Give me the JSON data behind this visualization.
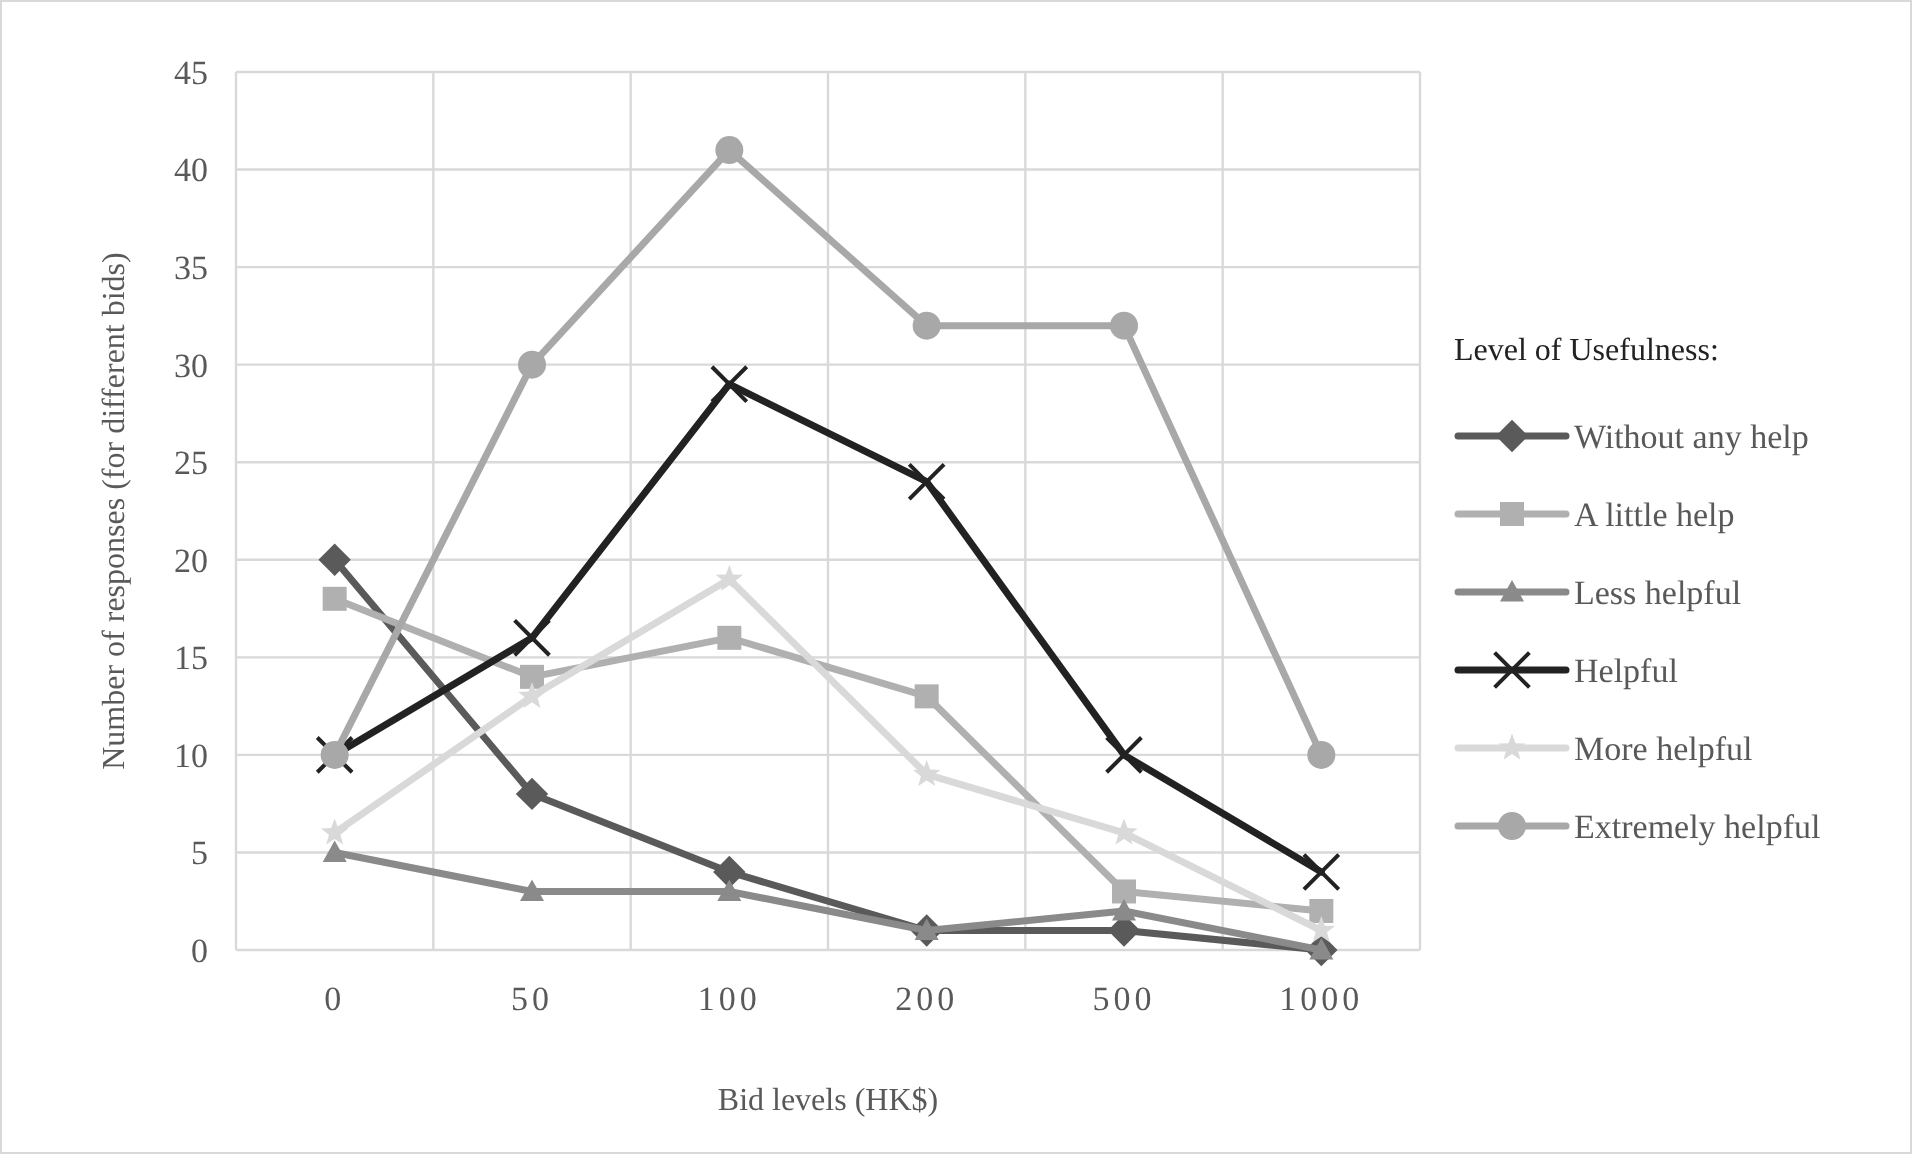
{
  "chart_data": {
    "type": "line",
    "xlabel": "Bid levels (HK$)",
    "ylabel": "Number of responses (for different bids)",
    "legend_title": "Level of Usefulness:",
    "categories": [
      "0",
      "50",
      "100",
      "200",
      "500",
      "1000"
    ],
    "ylim": [
      0,
      45
    ],
    "yticks": [
      0,
      5,
      10,
      15,
      20,
      25,
      30,
      35,
      40,
      45
    ],
    "grid": true,
    "legend": "right",
    "line_style": "solid",
    "series": [
      {
        "name": "Without any help",
        "color": "#5a5a5a",
        "marker": "diamond",
        "values": [
          20,
          8,
          4,
          1,
          1,
          0
        ]
      },
      {
        "name": "A little help",
        "color": "#b0b0b0",
        "marker": "square",
        "values": [
          18,
          14,
          16,
          13,
          3,
          2
        ]
      },
      {
        "name": "Less helpful",
        "color": "#8a8a8a",
        "marker": "triangle",
        "values": [
          5,
          3,
          3,
          1,
          2,
          0
        ]
      },
      {
        "name": "Helpful",
        "color": "#222222",
        "marker": "cross",
        "values": [
          10,
          16,
          29,
          24,
          10,
          4
        ]
      },
      {
        "name": "More helpful",
        "color": "#d9d9d9",
        "marker": "star",
        "values": [
          6,
          13,
          19,
          9,
          6,
          1
        ]
      },
      {
        "name": "Extremely helpful",
        "color": "#a8a8a8",
        "marker": "circle",
        "values": [
          10,
          30,
          41,
          32,
          32,
          10
        ]
      }
    ]
  }
}
